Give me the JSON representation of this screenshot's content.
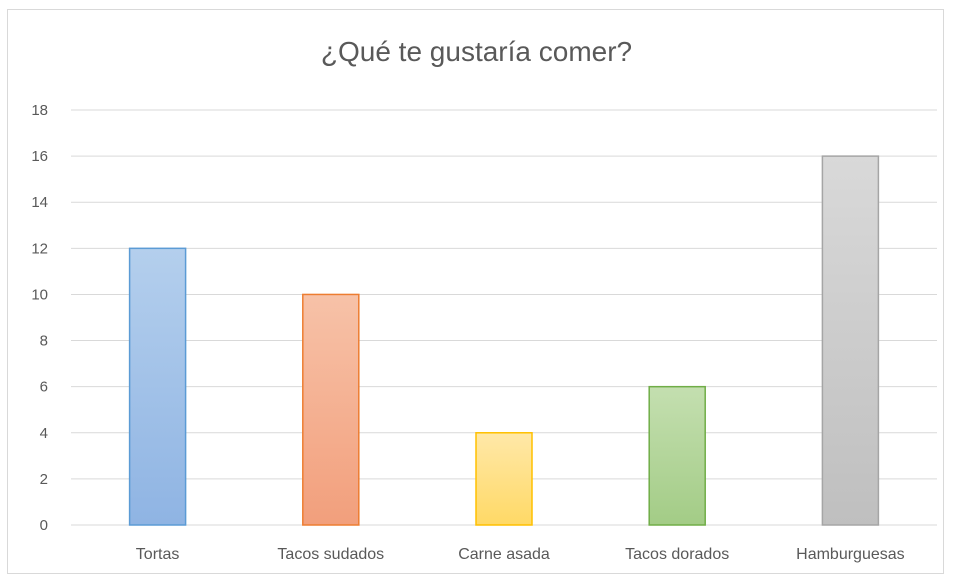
{
  "chart_data": {
    "type": "bar",
    "title": "¿Qué te gustaría comer?",
    "categories": [
      "Tortas",
      "Tacos sudados",
      "Carne asada",
      "Tacos dorados",
      "Hamburguesas"
    ],
    "values": [
      12,
      10,
      4,
      6,
      16
    ],
    "ylim": [
      0,
      18
    ],
    "yticks": [
      0,
      2,
      4,
      6,
      8,
      10,
      12,
      14,
      16,
      18
    ],
    "grid": true,
    "legend": "none",
    "colors": [
      {
        "fill_top": "#b4cfed",
        "fill_bottom": "#8fb4e3",
        "stroke": "#5b9bd5"
      },
      {
        "fill_top": "#f7c2a8",
        "fill_bottom": "#f29f7c",
        "stroke": "#ed7d31"
      },
      {
        "fill_top": "#ffe8a8",
        "fill_bottom": "#ffd966",
        "stroke": "#ffc000"
      },
      {
        "fill_top": "#c4dfb0",
        "fill_bottom": "#a3cc86",
        "stroke": "#70ad47"
      },
      {
        "fill_top": "#d9d9d9",
        "fill_bottom": "#bfbfbf",
        "stroke": "#a5a5a5"
      }
    ]
  }
}
